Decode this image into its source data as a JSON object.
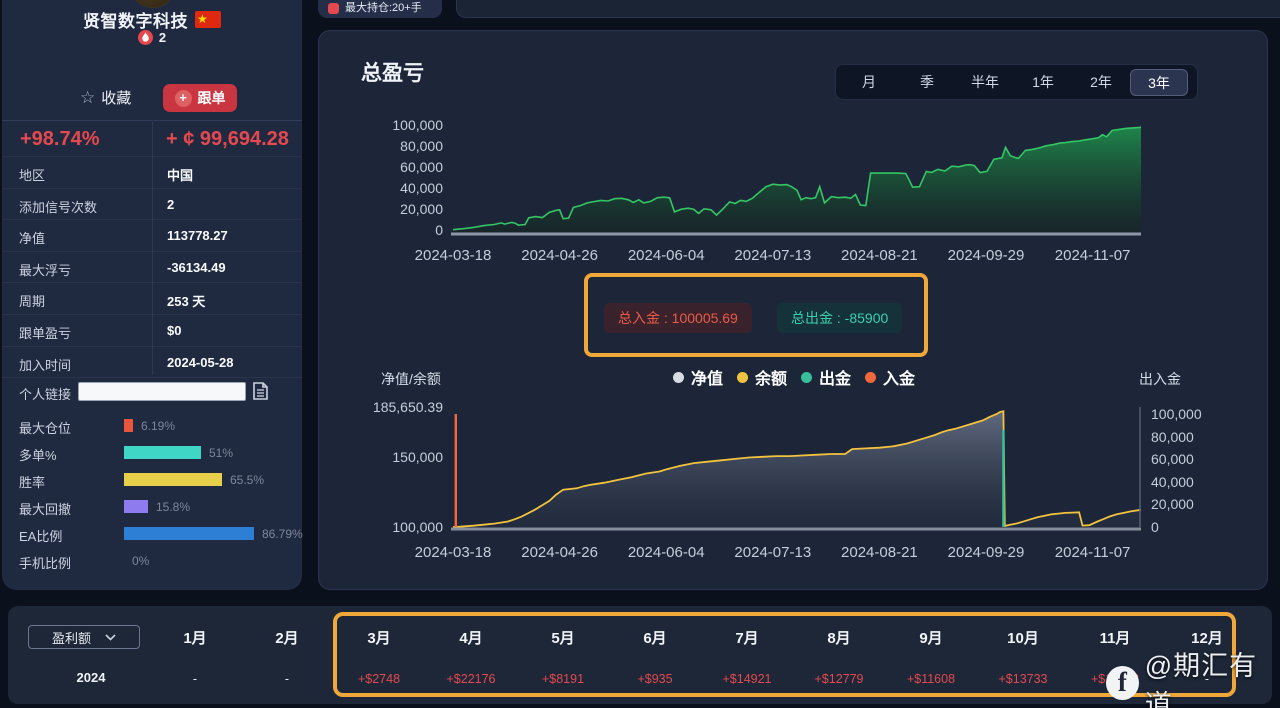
{
  "top_bar": {
    "max_position_label": "最大持仓:20+手"
  },
  "watermark": {
    "text": "@期汇有道",
    "icon": "facebook-icon"
  },
  "sidebar": {
    "name": "贤智数字科技",
    "flag": "china-flag",
    "signal_count": "2",
    "favorite_label": "收藏",
    "follow_label": "跟单",
    "return_pct": "+98.74%",
    "profit_amount": "+ ¢ 99,694.28",
    "info_rows": [
      {
        "label": "地区",
        "value": "中国"
      },
      {
        "label": "添加信号次数",
        "value": "2"
      },
      {
        "label": "净值",
        "value": "113778.27"
      },
      {
        "label": "最大浮亏",
        "value": "-36134.49"
      },
      {
        "label": "周期",
        "value": "253 天"
      },
      {
        "label": "跟单盈亏",
        "value": "$0"
      },
      {
        "label": "加入时间",
        "value": "2024-05-28"
      }
    ],
    "link_label": "个人链接",
    "link_value": "",
    "bars": [
      {
        "label": "最大仓位",
        "pct": 6.19,
        "display": "6.19%",
        "color": "#e8553d"
      },
      {
        "label": "多单%",
        "pct": 51,
        "display": "51%",
        "color": "#3fd6c5"
      },
      {
        "label": "胜率",
        "pct": 65.5,
        "display": "65.5%",
        "color": "#e8cf4a"
      },
      {
        "label": "最大回撤",
        "pct": 15.8,
        "display": "15.8%",
        "color": "#8f7bf0"
      },
      {
        "label": "EA比例",
        "pct": 86.79,
        "display": "86.79%",
        "color": "#2c7fd4"
      },
      {
        "label": "手机比例",
        "pct": 0,
        "display": "0%",
        "color": "#7e8798"
      }
    ]
  },
  "main": {
    "title": "总盈亏",
    "period_tabs": [
      "月",
      "季",
      "半年",
      "1年",
      "2年",
      "3年"
    ],
    "active_tab": "3年",
    "deposit_badge": "总入金 : 100005.69",
    "withdraw_badge": "总出金 : -85900",
    "chart2_left_title": "净值/余额",
    "chart2_right_title": "出入金",
    "legend": [
      {
        "label": "净值",
        "color": "#d9dde3"
      },
      {
        "label": "余额",
        "color": "#f2c33e"
      },
      {
        "label": "出金",
        "color": "#35bf9a"
      },
      {
        "label": "入金",
        "color": "#f2683c"
      }
    ]
  },
  "chart_data": [
    {
      "type": "area",
      "title": "总盈亏",
      "x_ticks": [
        "2024-03-18",
        "2024-04-26",
        "2024-06-04",
        "2024-07-13",
        "2024-08-21",
        "2024-09-29",
        "2024-11-07"
      ],
      "y_ticks": [
        "0",
        "20,000",
        "40,000",
        "60,000",
        "80,000",
        "100,000"
      ],
      "ylim": [
        0,
        100000
      ],
      "line_color": "#35c565",
      "series": [
        {
          "name": "总盈亏",
          "points": [
            [
              0,
              300
            ],
            [
              0.015,
              1200
            ],
            [
              0.03,
              2500
            ],
            [
              0.045,
              4200
            ],
            [
              0.06,
              5200
            ],
            [
              0.07,
              6800
            ],
            [
              0.075,
              5600
            ],
            [
              0.085,
              7200
            ],
            [
              0.09,
              6600
            ],
            [
              0.095,
              4600
            ],
            [
              0.105,
              5200
            ],
            [
              0.11,
              11500
            ],
            [
              0.12,
              12800
            ],
            [
              0.13,
              11800
            ],
            [
              0.14,
              16800
            ],
            [
              0.15,
              18800
            ],
            [
              0.155,
              19200
            ],
            [
              0.16,
              10800
            ],
            [
              0.168,
              11200
            ],
            [
              0.175,
              21500
            ],
            [
              0.185,
              23200
            ],
            [
              0.195,
              25800
            ],
            [
              0.205,
              27000
            ],
            [
              0.215,
              28200
            ],
            [
              0.225,
              27600
            ],
            [
              0.235,
              29800
            ],
            [
              0.245,
              30200
            ],
            [
              0.255,
              28800
            ],
            [
              0.262,
              26200
            ],
            [
              0.27,
              28800
            ],
            [
              0.277,
              25800
            ],
            [
              0.287,
              27200
            ],
            [
              0.297,
              30800
            ],
            [
              0.307,
              31200
            ],
            [
              0.315,
              30600
            ],
            [
              0.322,
              17200
            ],
            [
              0.332,
              19800
            ],
            [
              0.342,
              20800
            ],
            [
              0.35,
              19600
            ],
            [
              0.357,
              15800
            ],
            [
              0.365,
              20200
            ],
            [
              0.375,
              19200
            ],
            [
              0.383,
              14200
            ],
            [
              0.392,
              19800
            ],
            [
              0.402,
              26800
            ],
            [
              0.41,
              25200
            ],
            [
              0.418,
              28200
            ],
            [
              0.426,
              27200
            ],
            [
              0.435,
              30200
            ],
            [
              0.445,
              35800
            ],
            [
              0.455,
              41200
            ],
            [
              0.465,
              43600
            ],
            [
              0.475,
              42800
            ],
            [
              0.485,
              43200
            ],
            [
              0.492,
              41200
            ],
            [
              0.5,
              37800
            ],
            [
              0.506,
              28800
            ],
            [
              0.513,
              30800
            ],
            [
              0.52,
              29800
            ],
            [
              0.527,
              30800
            ],
            [
              0.533,
              41200
            ],
            [
              0.54,
              25800
            ],
            [
              0.55,
              31800
            ],
            [
              0.56,
              30800
            ],
            [
              0.57,
              31200
            ],
            [
              0.578,
              30200
            ],
            [
              0.585,
              33800
            ],
            [
              0.592,
              23800
            ],
            [
              0.6,
              23200
            ],
            [
              0.607,
              54200
            ],
            [
              0.625,
              54200
            ],
            [
              0.645,
              54200
            ],
            [
              0.658,
              53800
            ],
            [
              0.663,
              47800
            ],
            [
              0.668,
              40800
            ],
            [
              0.678,
              41200
            ],
            [
              0.688,
              55800
            ],
            [
              0.695,
              54800
            ],
            [
              0.705,
              57800
            ],
            [
              0.715,
              56200
            ],
            [
              0.725,
              60800
            ],
            [
              0.735,
              60200
            ],
            [
              0.745,
              61800
            ],
            [
              0.752,
              62200
            ],
            [
              0.758,
              61200
            ],
            [
              0.766,
              54800
            ],
            [
              0.776,
              55800
            ],
            [
              0.786,
              67200
            ],
            [
              0.798,
              68800
            ],
            [
              0.803,
              78800
            ],
            [
              0.81,
              70800
            ],
            [
              0.816,
              69200
            ],
            [
              0.822,
              68200
            ],
            [
              0.832,
              75800
            ],
            [
              0.842,
              76800
            ],
            [
              0.852,
              78200
            ],
            [
              0.862,
              80200
            ],
            [
              0.872,
              81200
            ],
            [
              0.882,
              82800
            ],
            [
              0.89,
              83200
            ],
            [
              0.9,
              84200
            ],
            [
              0.91,
              84800
            ],
            [
              0.918,
              85800
            ],
            [
              0.928,
              86800
            ],
            [
              0.938,
              87800
            ],
            [
              0.944,
              90800
            ],
            [
              0.95,
              88800
            ],
            [
              0.958,
              94800
            ],
            [
              0.968,
              95800
            ],
            [
              0.978,
              96800
            ],
            [
              0.988,
              97200
            ],
            [
              1,
              97800
            ]
          ]
        }
      ]
    },
    {
      "type": "line",
      "title": "净值/余额",
      "x_ticks": [
        "2024-03-18",
        "2024-04-26",
        "2024-06-04",
        "2024-07-13",
        "2024-08-21",
        "2024-09-29",
        "2024-11-07"
      ],
      "left_axis": {
        "max": 187800,
        "min": 100000,
        "ticks": [
          {
            "label": "185,650.39",
            "value": 185650.39
          },
          {
            "label": "150,000",
            "value": 150000
          },
          {
            "label": "100,000",
            "value": 100000
          }
        ]
      },
      "right_axis": {
        "title": "出入金",
        "range": [
          0,
          100000
        ],
        "ticks": [
          "100,000",
          "80,000",
          "60,000",
          "40,000",
          "20,000",
          "0"
        ]
      },
      "series": [
        {
          "name": "余额",
          "color": "#f2c33e",
          "points": [
            [
              0,
              100000
            ],
            [
              0.01,
              100200
            ],
            [
              0.03,
              100900
            ],
            [
              0.05,
              101900
            ],
            [
              0.06,
              102400
            ],
            [
              0.08,
              103900
            ],
            [
              0.09,
              105600
            ],
            [
              0.1,
              107600
            ],
            [
              0.11,
              110100
            ],
            [
              0.12,
              112600
            ],
            [
              0.13,
              115600
            ],
            [
              0.14,
              118600
            ],
            [
              0.15,
              123100
            ],
            [
              0.16,
              126600
            ],
            [
              0.17,
              127100
            ],
            [
              0.18,
              127600
            ],
            [
              0.19,
              129100
            ],
            [
              0.2,
              130100
            ],
            [
              0.22,
              131600
            ],
            [
              0.24,
              133600
            ],
            [
              0.26,
              135600
            ],
            [
              0.28,
              138100
            ],
            [
              0.3,
              139600
            ],
            [
              0.31,
              141100
            ],
            [
              0.33,
              143600
            ],
            [
              0.35,
              145600
            ],
            [
              0.37,
              146600
            ],
            [
              0.39,
              147600
            ],
            [
              0.41,
              148600
            ],
            [
              0.43,
              149600
            ],
            [
              0.45,
              150100
            ],
            [
              0.47,
              150600
            ],
            [
              0.49,
              150600
            ],
            [
              0.51,
              151100
            ],
            [
              0.53,
              151600
            ],
            [
              0.55,
              152100
            ],
            [
              0.57,
              152100
            ],
            [
              0.58,
              155600
            ],
            [
              0.6,
              156100
            ],
            [
              0.62,
              156600
            ],
            [
              0.64,
              157600
            ],
            [
              0.66,
              159600
            ],
            [
              0.68,
              162600
            ],
            [
              0.7,
              165600
            ],
            [
              0.71,
              167600
            ],
            [
              0.72,
              169100
            ],
            [
              0.73,
              170100
            ],
            [
              0.74,
              171600
            ],
            [
              0.75,
              173100
            ],
            [
              0.76,
              174600
            ],
            [
              0.77,
              176100
            ],
            [
              0.78,
              178600
            ],
            [
              0.79,
              180600
            ],
            [
              0.795,
              182100
            ],
            [
              0.8,
              182650
            ],
            [
              0.802,
              100800
            ],
            [
              0.81,
              101600
            ],
            [
              0.82,
              102600
            ],
            [
              0.83,
              104100
            ],
            [
              0.84,
              105600
            ],
            [
              0.85,
              107100
            ],
            [
              0.86,
              108100
            ],
            [
              0.87,
              109100
            ],
            [
              0.88,
              109600
            ],
            [
              0.89,
              110100
            ],
            [
              0.9,
              110300
            ],
            [
              0.91,
              110500
            ],
            [
              0.915,
              101000
            ],
            [
              0.925,
              101300
            ],
            [
              0.935,
              103600
            ],
            [
              0.945,
              105600
            ],
            [
              0.955,
              107600
            ],
            [
              0.965,
              109100
            ],
            [
              0.975,
              110100
            ],
            [
              0.985,
              111100
            ],
            [
              1,
              112300
            ]
          ]
        }
      ],
      "events": [
        {
          "name": "入金",
          "color": "#f2683c",
          "t": 0.004,
          "value": 100005.69
        },
        {
          "name": "出金",
          "color": "#35bf9a",
          "t": 0.8,
          "value": 85900
        }
      ],
      "totals": {
        "deposit": "100005.69",
        "withdraw": "-85900"
      }
    }
  ],
  "bottom": {
    "selector": "盈利额",
    "year": "2024",
    "months": [
      "1月",
      "2月",
      "3月",
      "4月",
      "5月",
      "6月",
      "7月",
      "8月",
      "9月",
      "10月",
      "11月",
      "12月"
    ],
    "values": [
      "-",
      "-",
      "+$2748",
      "+$22176",
      "+$8191",
      "+$935",
      "+$14921",
      "+$12779",
      "+$11608",
      "+$13733",
      "+$11062",
      "-"
    ]
  },
  "colors": {
    "page_bg": "#0b101d",
    "card_bg": "#1c2638",
    "sidebar_bg": "#1f2940",
    "accent_red": "#e4494f",
    "highlight_orange": "#f0a83a",
    "green_line": "#35c565",
    "balance_line": "#f2c33e",
    "teal": "#35bf9a",
    "orange": "#f2683c"
  }
}
